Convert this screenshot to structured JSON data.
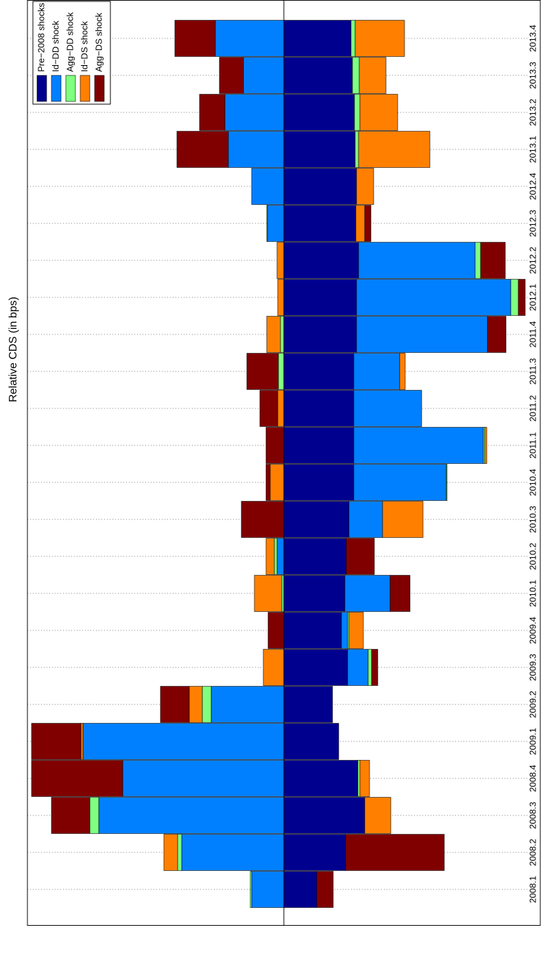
{
  "chart_data": {
    "type": "stacked-barh",
    "y_label": "Relative CDS (in bps)",
    "categories": [
      "2008.1",
      "2008.2",
      "2008.3",
      "2008.4",
      "2009.1",
      "2009.2",
      "2009.3",
      "2009.4",
      "2010.1",
      "2010.2",
      "2010.3",
      "2010.4",
      "2011.1",
      "2011.2",
      "2011.3",
      "2011.4",
      "2012.1",
      "2012.2",
      "2012.3",
      "2012.4",
      "2013.1",
      "2013.2",
      "2013.3",
      "2013.4"
    ],
    "series": [
      {
        "name": "Pre−2008 shocks",
        "color": "#00008f",
        "values": [
          4.8,
          9.0,
          11.8,
          10.8,
          8.0,
          7.1,
          9.3,
          8.4,
          8.9,
          9.1,
          9.5,
          10.2,
          10.2,
          10.2,
          10.2,
          10.6,
          10.6,
          10.9,
          10.5,
          10.6,
          10.4,
          10.3,
          10.0,
          9.8
        ]
      },
      {
        "name": "Id−DD shock",
        "color": "#0080ff",
        "values": [
          -4.7,
          -14.9,
          -27.0,
          -23.5,
          -29.3,
          -10.6,
          3.0,
          0.9,
          6.6,
          -1.0,
          4.9,
          13.5,
          18.9,
          9.9,
          6.7,
          19.1,
          22.5,
          17.0,
          -2.4,
          -4.7,
          -8.1,
          -8.6,
          -5.9,
          -10.0
        ]
      },
      {
        "name": "Agg−DD shock",
        "color": "#80ff80",
        "values": [
          -0.2,
          -0.6,
          -1.3,
          0.3,
          0,
          -1.3,
          0.5,
          0.2,
          -0.3,
          -0.4,
          0,
          0.1,
          0.2,
          0,
          -0.8,
          -0.5,
          1.1,
          0.8,
          -0.1,
          0,
          0.5,
          0.8,
          1.0,
          0.6
        ]
      },
      {
        "name": "Id−DS shock",
        "color": "#ff8000",
        "values": [
          0,
          -2.0,
          3.8,
          1.4,
          -0.3,
          -1.9,
          -3.0,
          2.1,
          -4.0,
          -1.2,
          5.9,
          -2.0,
          0.3,
          -0.9,
          0.8,
          -2.0,
          -0.9,
          -1.0,
          1.3,
          2.5,
          10.4,
          5.5,
          3.9,
          7.2
        ]
      },
      {
        "name": "Agg−DS shock",
        "color": "#800000",
        "values": [
          2.4,
          14.4,
          -5.6,
          -13.3,
          -7.2,
          -4.2,
          0.9,
          -2.3,
          2.9,
          4.1,
          -6.2,
          -0.6,
          -2.6,
          -2.6,
          -4.6,
          2.7,
          1.0,
          3.6,
          0.9,
          0,
          -7.5,
          -3.7,
          -3.5,
          -5.9
        ]
      }
    ],
    "ylim": [
      -37.4,
      37.4
    ],
    "grid": true,
    "legend": "top-left"
  }
}
